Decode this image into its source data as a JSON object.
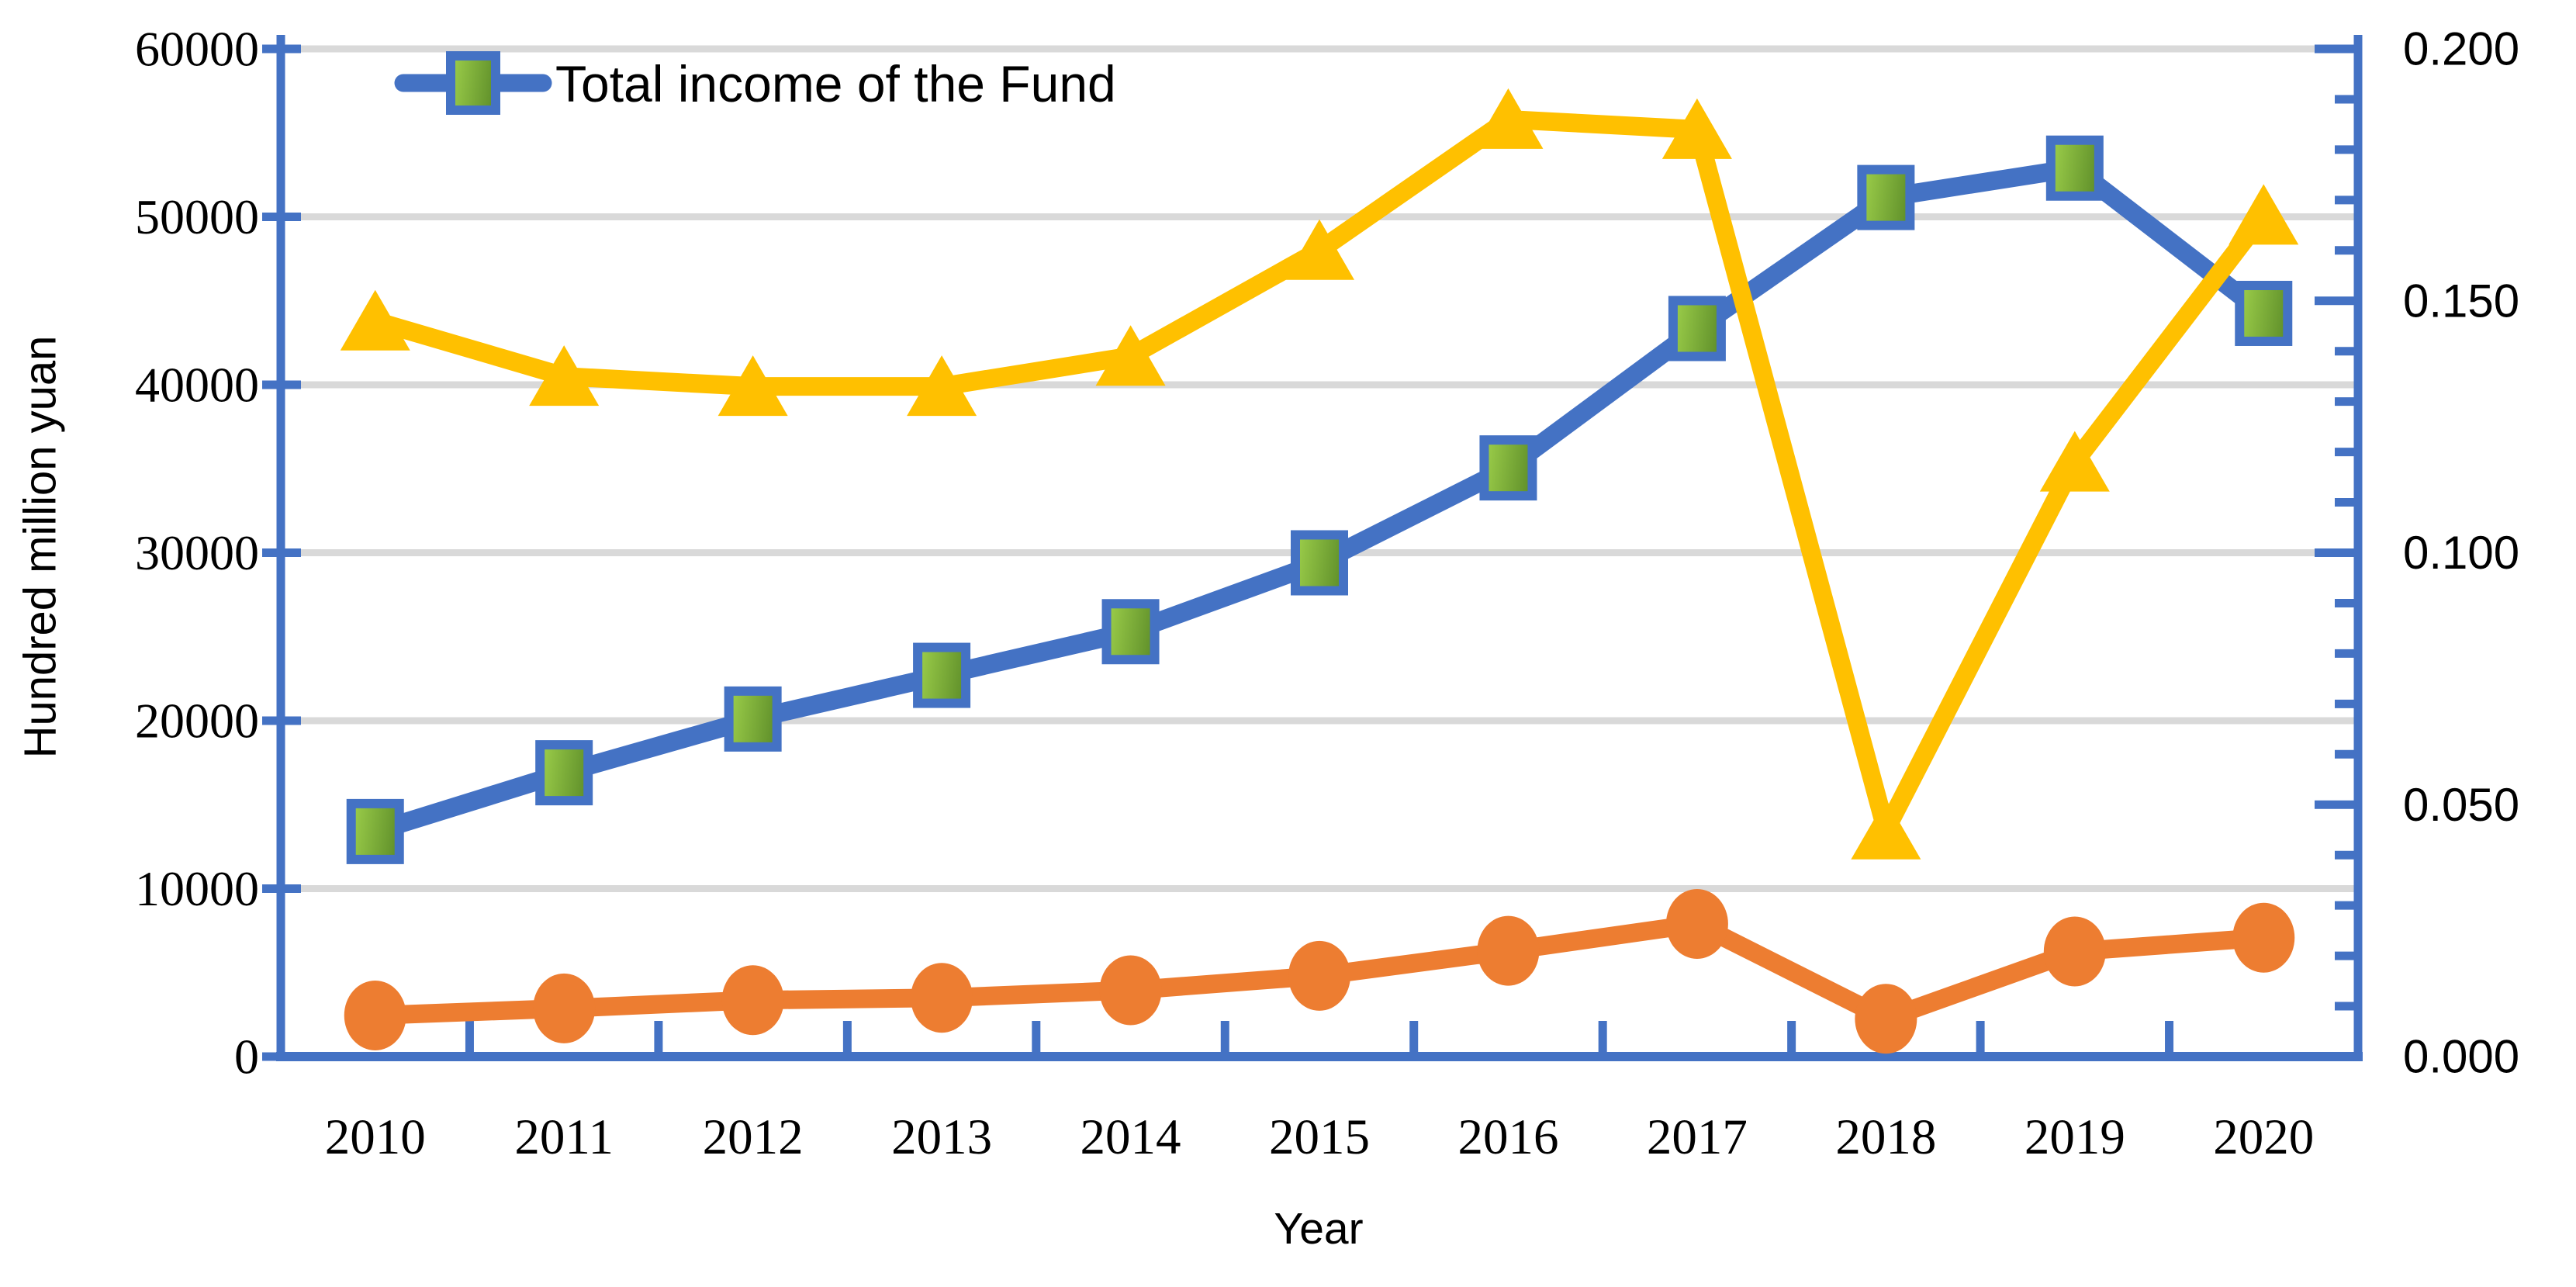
{
  "chart_data": {
    "type": "line",
    "title": "",
    "x_axis": {
      "label": "Year",
      "categories": [
        "2010",
        "2011",
        "2012",
        "2013",
        "2014",
        "2015",
        "2016",
        "2017",
        "2018",
        "2019",
        "2020"
      ]
    },
    "left_axis": {
      "label": "Hundred million yuan",
      "min": 0,
      "max": 60000,
      "major_step": 10000,
      "tick_labels": [
        "0",
        "10000",
        "20000",
        "30000",
        "40000",
        "50000",
        "60000"
      ]
    },
    "right_axis": {
      "min": 0.0,
      "max": 0.2,
      "major_step": 0.05,
      "minor_step": 0.01,
      "tick_labels": [
        "0.000",
        "0.050",
        "0.100",
        "0.150",
        "0.200"
      ]
    },
    "legend": {
      "entries": [
        {
          "label": "Total income of the Fund"
        }
      ]
    },
    "grid": "on",
    "grid_color": "#D9D9D9",
    "axis_color": "#4472C4",
    "series": [
      {
        "id": "total-income",
        "legend_label": "Total income of the Fund",
        "axis": "left",
        "color": "#4472C4",
        "marker": "square",
        "marker_fill_light": "#9ED04B",
        "marker_fill_dark": "#63932C",
        "marker_border": "#4472C4",
        "values": [
          13400,
          16900,
          20100,
          22700,
          25300,
          29400,
          35050,
          43350,
          51150,
          52900,
          44250
        ]
      },
      {
        "id": "orange-series",
        "legend_label": "",
        "axis": "left",
        "color": "#ED7D31",
        "marker": "circle",
        "values": [
          2450,
          2870,
          3360,
          3500,
          3950,
          4810,
          6300,
          7900,
          2250,
          6260,
          7080
        ]
      },
      {
        "id": "gold-series",
        "legend_label": "",
        "axis": "right",
        "color": "#FFC000",
        "marker": "triangle",
        "values": [
          0.146,
          0.135,
          0.133,
          0.133,
          0.139,
          0.16,
          0.186,
          0.184,
          0.045,
          0.118,
          0.167
        ]
      }
    ]
  }
}
